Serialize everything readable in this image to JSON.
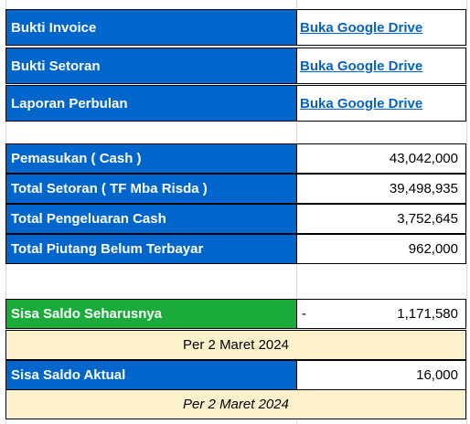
{
  "links": [
    {
      "label": "Bukti Invoice",
      "link_text": "Buka Google Drive"
    },
    {
      "label": "Bukti Setoran",
      "link_text": "Buka Google Drive"
    },
    {
      "label": "Laporan Perbulan",
      "link_text": "Buka Google Drive"
    }
  ],
  "summary": [
    {
      "label": "Pemasukan ( Cash )",
      "value": "43,042,000"
    },
    {
      "label": "Total Setoran ( TF Mba Risda )",
      "value": "39,498,935"
    },
    {
      "label": "Total Pengeluaran Cash",
      "value": "3,752,645"
    },
    {
      "label": "Total Piutang Belum Terbayar",
      "value": "962,000"
    }
  ],
  "balance": {
    "expected_label": "Sisa Saldo Seharusnya",
    "expected_prefix": "-",
    "expected_value": "1,171,580",
    "expected_note": "Per 2 Maret 2024",
    "actual_label": "Sisa Saldo Aktual",
    "actual_value": "16,000",
    "actual_note": "Per 2 Maret 2024"
  },
  "colors": {
    "label_blue": "#0066cc",
    "label_green": "#1aab3a",
    "note_bg": "#fdf1cc",
    "link": "#0563c1"
  }
}
